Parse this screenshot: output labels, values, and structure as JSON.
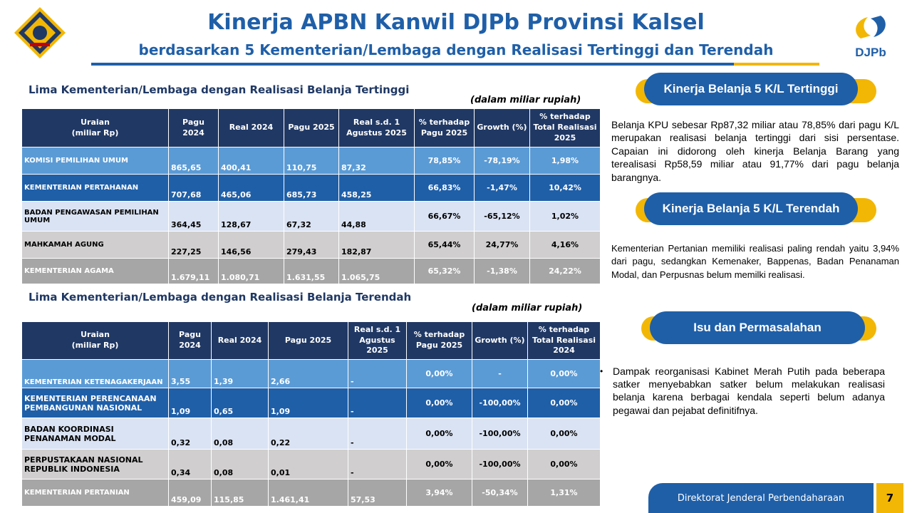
{
  "header": {
    "title": "Kinerja APBN Kanwil DJPb Provinsi Kalsel",
    "subtitle": "berdasarkan 5 Kementerian/Lembaga dengan Realisasi Tertinggi dan Terendah",
    "logo_right_text": "DJPb"
  },
  "top_table": {
    "section_title": "Lima Kementerian/Lembaga dengan Realisasi Belanja Tertinggi",
    "unit_note": "(dalam miliar rupiah)",
    "headers": [
      "Uraian\n(miliar Rp)",
      "Pagu 2024",
      "Real 2024",
      "Pagu 2025",
      "Real s.d. 1 Agustus 2025",
      "% terhadap Pagu 2025",
      "Growth (%)",
      "% terhadap Total Realisasi 2025"
    ],
    "rows": [
      {
        "name": "KOMISI PEMILIHAN UMUM",
        "pagu2024": "865,65",
        "real2024": "400,41",
        "pagu2025": "110,75",
        "real2025": "87,32",
        "pct_pagu": "78,85%",
        "growth": "-78,19%",
        "pct_total": "1,98%"
      },
      {
        "name": "KEMENTERIAN PERTAHANAN",
        "pagu2024": "707,68",
        "real2024": "465,06",
        "pagu2025": "685,73",
        "real2025": "458,25",
        "pct_pagu": "66,83%",
        "growth": "-1,47%",
        "pct_total": "10,42%"
      },
      {
        "name": "BADAN PENGAWASAN PEMILIHAN UMUM",
        "pagu2024": "364,45",
        "real2024": "128,67",
        "pagu2025": "67,32",
        "real2025": "44,88",
        "pct_pagu": "66,67%",
        "growth": "-65,12%",
        "pct_total": "1,02%"
      },
      {
        "name": "MAHKAMAH AGUNG",
        "pagu2024": "227,25",
        "real2024": "146,56",
        "pagu2025": "279,43",
        "real2025": "182,87",
        "pct_pagu": "65,44%",
        "growth": "24,77%",
        "pct_total": "4,16%"
      },
      {
        "name": "KEMENTERIAN AGAMA",
        "pagu2024": "1.679,11",
        "real2024": "1.080,71",
        "pagu2025": "1.631,55",
        "real2025": "1.065,75",
        "pct_pagu": "65,32%",
        "growth": "-1,38%",
        "pct_total": "24,22%"
      }
    ]
  },
  "bottom_table": {
    "section_title": "Lima Kementerian/Lembaga dengan Realisasi Belanja Terendah",
    "unit_note": "(dalam miliar rupiah)",
    "headers": [
      "Uraian\n(miliar Rp)",
      "Pagu 2024",
      "Real 2024",
      "Pagu 2025",
      "Real s.d. 1 Agustus 2025",
      "% terhadap Pagu 2025",
      "Growth (%)",
      "% terhadap Total Realisasi 2024"
    ],
    "rows": [
      {
        "name": "KEMENTERIAN KETENAGAKERJAAN",
        "pagu2024": "3,55",
        "real2024": "1,39",
        "pagu2025": "2,66",
        "real2025": "-",
        "pct_pagu": "0,00%",
        "growth": "-",
        "pct_total": "0,00%"
      },
      {
        "name": "KEMENTERIAN PERENCANAAN PEMBANGUNAN NASIONAL",
        "pagu2024": "1,09",
        "real2024": "0,65",
        "pagu2025": "1,09",
        "real2025": "-",
        "pct_pagu": "0,00%",
        "growth": "-100,00%",
        "pct_total": "0,00%"
      },
      {
        "name": "BADAN KOORDINASI PENANAMAN MODAL",
        "pagu2024": "0,32",
        "real2024": "0,08",
        "pagu2025": "0,22",
        "real2025": "-",
        "pct_pagu": "0,00%",
        "growth": "-100,00%",
        "pct_total": "0,00%"
      },
      {
        "name": "PERPUSTAKAAN NASIONAL REPUBLIK INDONESIA",
        "pagu2024": "0,34",
        "real2024": "0,08",
        "pagu2025": "0,01",
        "real2025": "-",
        "pct_pagu": "0,00%",
        "growth": "-100,00%",
        "pct_total": "0,00%"
      },
      {
        "name": "KEMENTERIAN PERTANIAN",
        "pagu2024": "459,09",
        "real2024": "115,85",
        "pagu2025": "1.461,41",
        "real2025": "57,53",
        "pct_pagu": "3,94%",
        "growth": "-50,34%",
        "pct_total": "1,31%"
      }
    ]
  },
  "right_panel": {
    "pill_top": "Kinerja Belanja 5 K/L Tertinggi",
    "text_top": "Belanja KPU sebesar Rp87,32 miliar atau 78,85% dari pagu K/L merupakan realisasi belanja tertinggi dari sisi persentase. Capaian ini didorong oleh kinerja Belanja Barang yang terealisasi Rp58,59 miliar atau 91,77% dari pagu belanja barangnya.",
    "pill_mid": "Kinerja Belanja 5 K/L Terendah",
    "text_mid": "Kementerian Pertanian memiliki realisasi paling rendah yaitu 3,94% dari pagu, sedangkan Kemenaker, Bappenas, Badan Penanaman Modal, dan Perpusnas  belum memilki realisasi.",
    "pill_bottom": "Isu dan Permasalahan",
    "bullet": "Dampak reorganisasi Kabinet Merah Putih pada beberapa satker menyebabkan satker belum melakukan realisasi belanja karena berbagai kendala seperti belum adanya pegawai dan pejabat definitifnya."
  },
  "footer": {
    "org": "Direktorat Jenderal Perbendaharaan",
    "page": "7"
  },
  "colors": {
    "brand_blue": "#1f5fa8",
    "navy": "#203864",
    "accent_yellow": "#f2b705"
  }
}
